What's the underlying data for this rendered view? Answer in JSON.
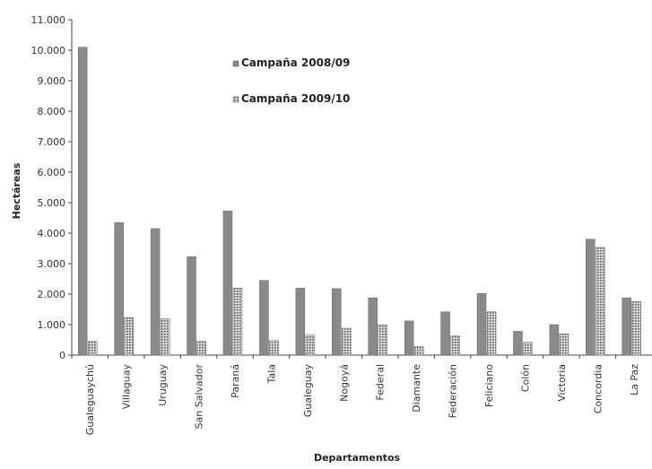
{
  "chart_data": {
    "type": "bar",
    "title": "",
    "xlabel": "Departamentos",
    "ylabel": "Hectáreas",
    "ylim": [
      0,
      11000
    ],
    "yticks": [
      0,
      1000,
      2000,
      3000,
      4000,
      5000,
      6000,
      7000,
      8000,
      9000,
      10000,
      11000
    ],
    "ytick_labels": [
      "0",
      "1.000",
      "2.000",
      "3.000",
      "4.000",
      "5.000",
      "6.000",
      "7.000",
      "8.000",
      "9.000",
      "10.000",
      "11.000"
    ],
    "grid": false,
    "legend_position": "top-center",
    "categories": [
      "Gualeguaychú",
      "Villaguay",
      "Uruguay",
      "San Salvador",
      "Paraná",
      "Tala",
      "Gualeguay",
      "Nogoyá",
      "Federal",
      "Diamante",
      "Federación",
      "Feliciano",
      "Colón",
      "Victoria",
      "Concordia",
      "La Paz"
    ],
    "series": [
      {
        "name": "Campaña 2008/09",
        "color": "#8a8a8a",
        "pattern": "solid",
        "values": [
          10100,
          4350,
          4150,
          3230,
          4730,
          2450,
          2200,
          2180,
          1880,
          1120,
          1420,
          2020,
          780,
          1000,
          3800,
          1880
        ]
      },
      {
        "name": "Campaña 2009/10",
        "color": "#7a7a7a",
        "pattern": "dotted",
        "values": [
          450,
          1230,
          1200,
          450,
          2200,
          480,
          660,
          880,
          990,
          280,
          630,
          1420,
          420,
          700,
          3530,
          1760
        ]
      }
    ]
  }
}
